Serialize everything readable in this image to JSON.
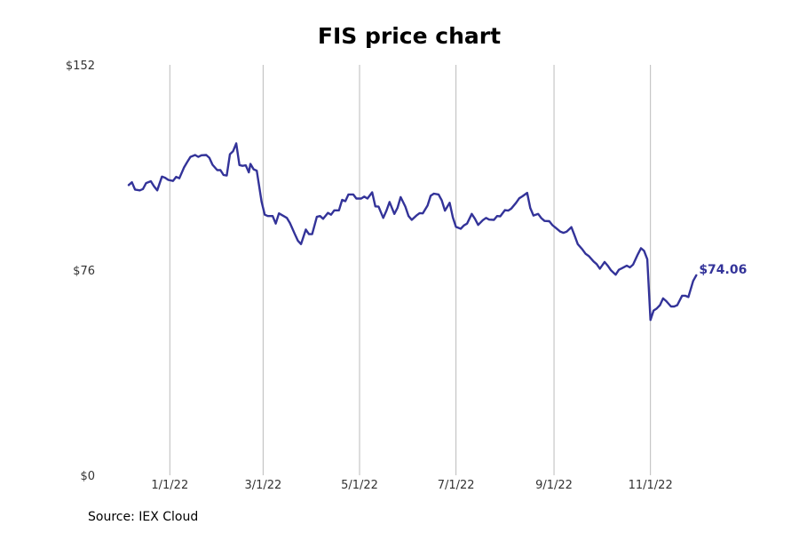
{
  "chart_data": {
    "type": "line",
    "title": "FIS price chart",
    "source": "Source: IEX Cloud",
    "xlabel": "",
    "ylabel": "",
    "ylim": [
      0,
      152
    ],
    "y_ticks": [
      0,
      76,
      152
    ],
    "y_tick_labels": [
      "$0",
      "$76",
      "$152"
    ],
    "x_ticks": [
      "2022-01-01",
      "2022-03-01",
      "2022-05-01",
      "2022-07-01",
      "2022-09-01",
      "2022-11-01"
    ],
    "x_tick_labels": [
      "1/1/22",
      "3/1/22",
      "5/1/22",
      "7/1/22",
      "9/1/22",
      "11/1/22"
    ],
    "grid": "vertical",
    "line_color": "#333399",
    "last_value_label": "$74.06",
    "series": [
      {
        "points": [
          [
            "2021-12-06",
            107.5
          ],
          [
            "2021-12-08",
            108.5
          ],
          [
            "2021-12-10",
            105.8
          ],
          [
            "2021-12-13",
            105.5
          ],
          [
            "2021-12-15",
            106.0
          ],
          [
            "2021-12-17",
            108.2
          ],
          [
            "2021-12-20",
            108.9
          ],
          [
            "2021-12-22",
            107.0
          ],
          [
            "2021-12-24",
            105.5
          ],
          [
            "2021-12-27",
            110.6
          ],
          [
            "2021-12-29",
            110.2
          ],
          [
            "2021-12-31",
            109.4
          ],
          [
            "2022-01-03",
            109.0
          ],
          [
            "2022-01-05",
            110.5
          ],
          [
            "2022-01-07",
            110.0
          ],
          [
            "2022-01-10",
            114.0
          ],
          [
            "2022-01-12",
            116.0
          ],
          [
            "2022-01-14",
            117.9
          ],
          [
            "2022-01-17",
            118.6
          ],
          [
            "2022-01-19",
            117.9
          ],
          [
            "2022-01-21",
            118.5
          ],
          [
            "2022-01-24",
            118.6
          ],
          [
            "2022-01-26",
            117.6
          ],
          [
            "2022-01-28",
            115.0
          ],
          [
            "2022-01-31",
            113.0
          ],
          [
            "2022-02-02",
            113.0
          ],
          [
            "2022-02-04",
            111.2
          ],
          [
            "2022-02-06",
            111.0
          ],
          [
            "2022-02-08",
            118.9
          ],
          [
            "2022-02-10",
            120.0
          ],
          [
            "2022-02-12",
            122.9
          ],
          [
            "2022-02-14",
            114.9
          ],
          [
            "2022-02-16",
            114.6
          ],
          [
            "2022-02-18",
            114.8
          ],
          [
            "2022-02-20",
            112.2
          ],
          [
            "2022-02-21",
            115.3
          ],
          [
            "2022-02-23",
            113.3
          ],
          [
            "2022-02-25",
            112.8
          ],
          [
            "2022-02-28",
            101.4
          ],
          [
            "2022-03-02",
            96.5
          ],
          [
            "2022-03-04",
            96.0
          ],
          [
            "2022-03-07",
            96.0
          ],
          [
            "2022-03-09",
            93.2
          ],
          [
            "2022-03-11",
            97.0
          ],
          [
            "2022-03-14",
            96.0
          ],
          [
            "2022-03-16",
            95.3
          ],
          [
            "2022-03-18",
            93.4
          ],
          [
            "2022-03-21",
            89.4
          ],
          [
            "2022-03-23",
            86.9
          ],
          [
            "2022-03-25",
            85.6
          ],
          [
            "2022-03-28",
            91.0
          ],
          [
            "2022-03-30",
            89.3
          ],
          [
            "2022-04-01",
            89.3
          ],
          [
            "2022-04-04",
            95.7
          ],
          [
            "2022-04-06",
            96.0
          ],
          [
            "2022-04-08",
            95.0
          ],
          [
            "2022-04-11",
            97.2
          ],
          [
            "2022-04-13",
            96.5
          ],
          [
            "2022-04-15",
            98.1
          ],
          [
            "2022-04-18",
            98.1
          ],
          [
            "2022-04-20",
            102.0
          ],
          [
            "2022-04-22",
            101.5
          ],
          [
            "2022-04-24",
            104.0
          ],
          [
            "2022-04-27",
            104.0
          ],
          [
            "2022-04-29",
            102.5
          ],
          [
            "2022-05-02",
            102.5
          ],
          [
            "2022-05-04",
            103.2
          ],
          [
            "2022-05-06",
            102.5
          ],
          [
            "2022-05-09",
            104.8
          ],
          [
            "2022-05-11",
            99.6
          ],
          [
            "2022-05-13",
            99.5
          ],
          [
            "2022-05-16",
            95.3
          ],
          [
            "2022-05-18",
            98.0
          ],
          [
            "2022-05-20",
            101.2
          ],
          [
            "2022-05-23",
            96.8
          ],
          [
            "2022-05-25",
            99.0
          ],
          [
            "2022-05-27",
            103.0
          ],
          [
            "2022-05-30",
            99.5
          ],
          [
            "2022-06-01",
            96.0
          ],
          [
            "2022-06-03",
            94.6
          ],
          [
            "2022-06-06",
            96.2
          ],
          [
            "2022-06-08",
            97.1
          ],
          [
            "2022-06-10",
            97.0
          ],
          [
            "2022-06-13",
            99.9
          ],
          [
            "2022-06-15",
            103.5
          ],
          [
            "2022-06-17",
            104.3
          ],
          [
            "2022-06-20",
            104.0
          ],
          [
            "2022-06-22",
            101.8
          ],
          [
            "2022-06-24",
            98.0
          ],
          [
            "2022-06-27",
            100.9
          ],
          [
            "2022-06-29",
            95.5
          ],
          [
            "2022-07-01",
            92.0
          ],
          [
            "2022-07-04",
            91.3
          ],
          [
            "2022-07-06",
            92.5
          ],
          [
            "2022-07-08",
            93.2
          ],
          [
            "2022-07-11",
            96.8
          ],
          [
            "2022-07-13",
            95.0
          ],
          [
            "2022-07-15",
            92.7
          ],
          [
            "2022-07-18",
            94.5
          ],
          [
            "2022-07-20",
            95.3
          ],
          [
            "2022-07-22",
            94.7
          ],
          [
            "2022-07-25",
            94.6
          ],
          [
            "2022-07-27",
            96.0
          ],
          [
            "2022-07-29",
            95.9
          ],
          [
            "2022-08-01",
            98.2
          ],
          [
            "2022-08-03",
            98.0
          ],
          [
            "2022-08-05",
            98.8
          ],
          [
            "2022-08-08",
            100.9
          ],
          [
            "2022-08-10",
            102.6
          ],
          [
            "2022-08-12",
            103.3
          ],
          [
            "2022-08-15",
            104.6
          ],
          [
            "2022-08-17",
            99.0
          ],
          [
            "2022-08-19",
            96.2
          ],
          [
            "2022-08-22",
            96.8
          ],
          [
            "2022-08-24",
            95.2
          ],
          [
            "2022-08-26",
            94.2
          ],
          [
            "2022-08-29",
            94.1
          ],
          [
            "2022-08-31",
            92.6
          ],
          [
            "2022-09-02",
            91.7
          ],
          [
            "2022-09-05",
            90.2
          ],
          [
            "2022-09-07",
            89.8
          ],
          [
            "2022-09-09",
            90.2
          ],
          [
            "2022-09-12",
            91.9
          ],
          [
            "2022-09-14",
            88.8
          ],
          [
            "2022-09-16",
            85.6
          ],
          [
            "2022-09-19",
            83.6
          ],
          [
            "2022-09-21",
            82.0
          ],
          [
            "2022-09-23",
            81.2
          ],
          [
            "2022-09-26",
            79.2
          ],
          [
            "2022-09-28",
            78.2
          ],
          [
            "2022-09-30",
            76.5
          ],
          [
            "2022-10-03",
            79.0
          ],
          [
            "2022-10-05",
            77.6
          ],
          [
            "2022-10-07",
            75.9
          ],
          [
            "2022-10-10",
            74.3
          ],
          [
            "2022-10-12",
            76.1
          ],
          [
            "2022-10-14",
            76.7
          ],
          [
            "2022-10-17",
            77.6
          ],
          [
            "2022-10-19",
            77.0
          ],
          [
            "2022-10-21",
            78.0
          ],
          [
            "2022-10-24",
            81.8
          ],
          [
            "2022-10-26",
            84.1
          ],
          [
            "2022-10-28",
            83.1
          ],
          [
            "2022-10-30",
            80.0
          ],
          [
            "2022-11-01",
            57.5
          ],
          [
            "2022-11-03",
            61.0
          ],
          [
            "2022-11-05",
            61.8
          ],
          [
            "2022-11-07",
            63.0
          ],
          [
            "2022-11-09",
            65.5
          ],
          [
            "2022-11-11",
            64.5
          ],
          [
            "2022-11-14",
            62.5
          ],
          [
            "2022-11-16",
            62.5
          ],
          [
            "2022-11-18",
            63.0
          ],
          [
            "2022-11-21",
            66.5
          ],
          [
            "2022-11-23",
            66.5
          ],
          [
            "2022-11-25",
            66.0
          ],
          [
            "2022-11-28",
            72.0
          ],
          [
            "2022-11-30",
            74.06
          ]
        ]
      }
    ]
  }
}
